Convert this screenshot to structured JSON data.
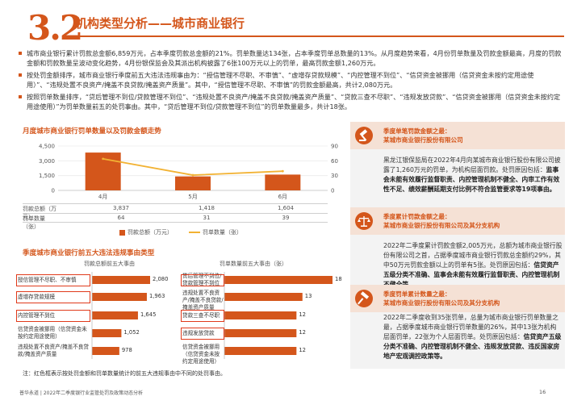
{
  "header": {
    "section_number": "3.2",
    "title": "机构类型分析——城市商业银行"
  },
  "bullets": [
    "城市商业银行累计罚款总金额6,859万元，占本季度罚款总金额的21%。罚单数量达134张，占本季度罚单总数量的13%。从月度趋势来看，4月份罚单数量及罚款金额最高，月度的罚款金额和罚款数量呈波动变化趋势，4月份银保监会及其派出机构披露了6张100万元以上的罚单，最高罚款金额1,260万元。",
    "按处罚金额排序，城市商业银行季度前五大违法违规事由为：“授信管理不尽职、不审慎”、“虚增存贷款规模”、“内控管理不到位”、“信贷资金被挪用（信贷资金未按约定用途使用）”、“违规处置不良资产/掩盖不良贷款/掩盖资产质量”。其中，“授信管理不尽职、不审慎”的罚款金额最高，共计2,080万元。",
    "按照罚单数量排序，“贷后管理不到位/贷款管理不到位”、“违规处置不良资产/掩盖不良贷款/掩盖资产质量”、“贷款三查不尽职”、“违规发放贷款”、“信贷资金被挪用（信贷资金未按约定用途使用）”为罚单数量前五的处罚事由。其中，“贷后管理不到位/贷款管理不到位”的罚单数量最多，共计18张。"
  ],
  "monthly_chart": {
    "title": "月度城市商业银行罚单数量以及罚款金额走势",
    "row_amount_label": "罚款总额（万元）",
    "row_count_label": "罚单数量（张）",
    "legend_amount": "罚款总额（万元）",
    "legend_count": "罚单数量（张）"
  },
  "reasons_section_title": "季度城市商业银行前五大违法违规事由类型",
  "left_hbar_title": "罚款总额前五大事由",
  "right_hbar_title": "罚单数量前五大事由（张）",
  "note": "注：红色框表示按处罚金额和罚单数量统计的前五大违规事由中不同的处罚事由。",
  "footer": "普华永道 | 2022年二季度银行业监管处罚及政策动态分析",
  "page_number": "16",
  "cards": [
    {
      "title": "季度单笔罚款金额之最：\n某城市商业银行股份有限公司",
      "icon": "gavel-icon",
      "body_plain": "黑龙江银保监局在2022年4月向某城市商业银行股份有限公司披露了1,260万元的罚单，为机构层面罚款。处罚原因包括：",
      "body_bold": "监事会未能有效履行监督职责、内控管理机制不健全、内审工作有效性不足、绩效薪酬延期支付比例不符合监管要求等19项事由。",
      "body_tail": ""
    },
    {
      "title": "季度累计罚款金额之最：\n某城市商业银行股份有限公司及其分支机构",
      "icon": "scales-icon",
      "body_plain": "2022年二季度累计罚款金额2,005万元，总额为城市商业银行股份有限公司之首，占据季度城市商业银行罚款总金额约29%，其中50万元罚款金额以上的罚单有5张。处罚原因包括：",
      "body_bold": "信贷资产五级分类不准确、监事会未能有效履行监督职责、内控管理机制不健全等。",
      "body_tail": ""
    },
    {
      "title": "季度罚单累计数量之最：\n某城市商业银行股份有限公司及其分支机构",
      "icon": "hammer-icon",
      "body_plain": "2022年二季度收到35张罚单，总量为城市商业银行罚单数量之最，占据季度城市商业银行罚单数量的26%，其中13张为机构层面罚单，22张为个人层面罚单。处罚原因包括：",
      "body_bold": "信贷资产五级分类不准确、内控管理机制不健全、违规发放贷款、违反国家房地产宏观调控政策等。",
      "body_tail": ""
    }
  ],
  "chart_data": [
    {
      "type": "bar",
      "title": "月度城市商业银行罚单数量以及罚款金额走势",
      "categories": [
        "4月",
        "5月",
        "6月"
      ],
      "series": [
        {
          "name": "罚款总额（万元）",
          "type": "bar",
          "axis": "left",
          "values": [
            3837,
            1418,
            1604
          ],
          "display": [
            "3,837",
            "1,418",
            "1,604"
          ]
        },
        {
          "name": "罚单数量（张）",
          "type": "line",
          "axis": "right",
          "values": [
            64,
            31,
            39
          ],
          "display": [
            "64",
            "31",
            "39"
          ]
        }
      ],
      "y_left_ticks": [
        "0",
        "1,500",
        "3,000",
        "4,500"
      ],
      "y_left_lim": [
        0,
        4500
      ],
      "y_right_ticks": [
        "0",
        "30",
        "60",
        "90"
      ],
      "y_right_lim": [
        0,
        90
      ],
      "colors": {
        "bar": "#d4561b",
        "line": "#f2b233"
      },
      "legend": "bottom"
    },
    {
      "type": "bar",
      "orientation": "horizontal",
      "title": "罚款总额前五大事由",
      "categories": [
        "授信管理不尽职、不审慎",
        "虚增存贷款规模",
        "内控管理不到位",
        "信贷资金被挪用（信贷资金未按约定用途使用）",
        "违规处置不良资产/掩盖不良贷款/掩盖资产质量"
      ],
      "values": [
        2080,
        1963,
        1645,
        1052,
        978
      ],
      "display": [
        "2,080",
        "1,963",
        "1,645",
        "1,052",
        "978"
      ],
      "highlighted": [
        true,
        true,
        true,
        false,
        false
      ],
      "colors": {
        "bar": "#d4561b"
      }
    },
    {
      "type": "bar",
      "orientation": "horizontal",
      "title": "罚单数量前五大事由（张）",
      "categories": [
        "贷后管理不到位/贷款管理不到位",
        "违规处置不良资产/掩盖不良贷款/掩盖资产质量",
        "贷款三查不尽职",
        "违规发放贷款",
        "信贷资金被挪用（信贷资金未按约定用途使用）"
      ],
      "values": [
        18,
        13,
        12,
        12,
        12
      ],
      "display": [
        "18",
        "13",
        "12",
        "12",
        "12"
      ],
      "highlighted": [
        true,
        false,
        true,
        true,
        false
      ],
      "colors": {
        "bar": "#d4561b"
      }
    }
  ]
}
